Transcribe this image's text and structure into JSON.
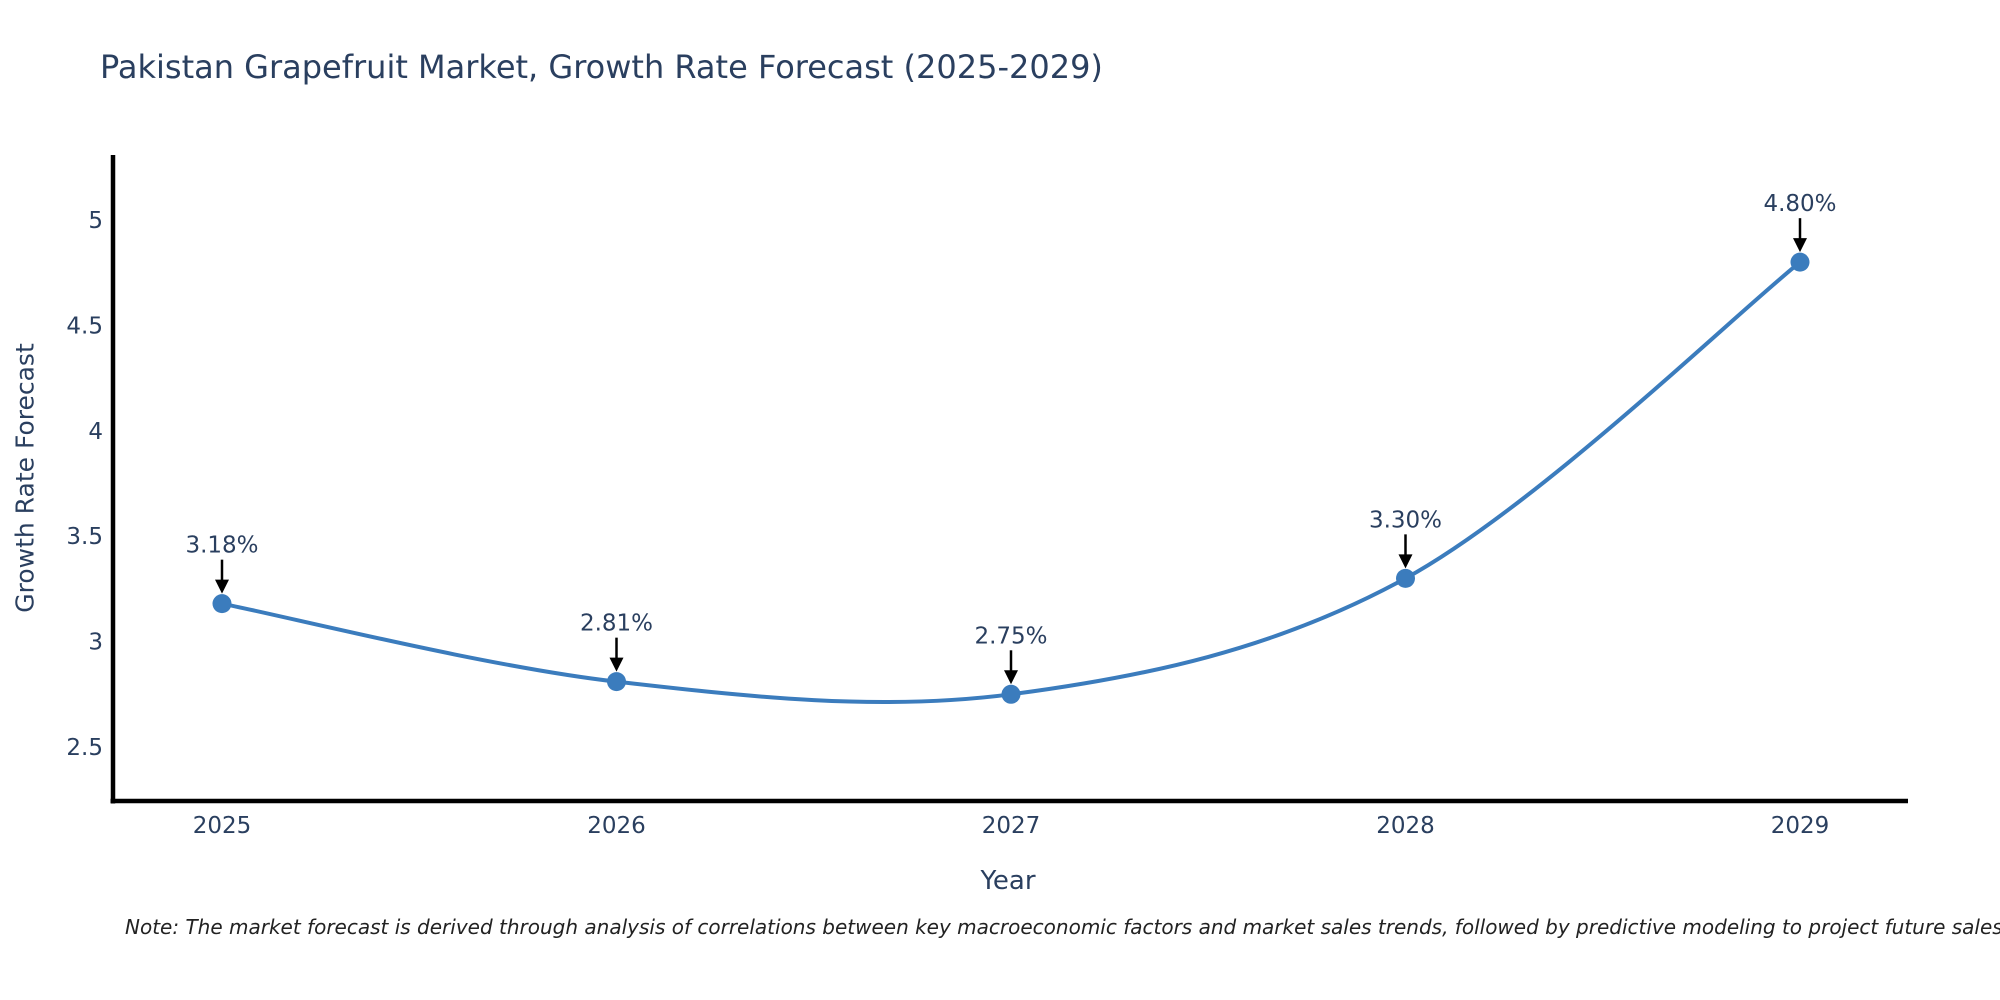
{
  "chart_data": {
    "type": "line",
    "title": "Pakistan Grapefruit Market, Growth Rate Forecast (2025-2029)",
    "xlabel": "Year",
    "ylabel": "Growth Rate Forecast",
    "x": [
      2025,
      2026,
      2027,
      2028,
      2029
    ],
    "values": [
      3.18,
      2.81,
      2.75,
      3.3,
      4.8
    ],
    "point_labels": [
      "3.18%",
      "2.81%",
      "2.75%",
      "3.30%",
      "4.80%"
    ],
    "xtick_labels": [
      "2025",
      "2026",
      "2027",
      "2028",
      "2029"
    ],
    "ytick_values": [
      2.5,
      3,
      3.5,
      4,
      4.5,
      5
    ],
    "ytick_labels": [
      "2.5",
      "3",
      "3.5",
      "4",
      "4.5",
      "5"
    ],
    "xlim": [
      2024.74,
      2029.27
    ],
    "ylim": [
      2.25,
      5.31
    ],
    "grid": false,
    "legend": null,
    "line_color": "#3b7cbd",
    "marker_color": "#3b7cbd",
    "arrow_color": "#000000",
    "axis_color": "#000000",
    "text_color": "#2a3f5f",
    "note_color": "#222222",
    "note": "Note: The market forecast is derived through analysis of correlations between key macroeconomic factors and market sales trends, followed by predictive modeling to project future sales"
  }
}
